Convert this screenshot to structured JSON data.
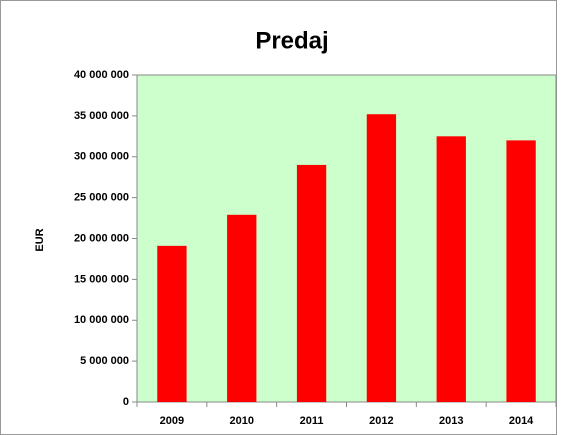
{
  "chart_data": {
    "type": "bar",
    "title": "Predaj",
    "y_label": "EUR",
    "categories": [
      "2009",
      "2010",
      "2011",
      "2012",
      "2013",
      "2014"
    ],
    "values": [
      19100000,
      22900000,
      29000000,
      35200000,
      32500000,
      32000000
    ],
    "color": "#ff0000",
    "plot_background": "#ccffcc",
    "ylim": [
      0,
      40000000
    ],
    "yticks": [
      0,
      {
        "value": 5000000,
        "label": "5 000 000"
      },
      {
        "value": 10000000,
        "label": "10 000 000"
      },
      {
        "value": 15000000,
        "label": "15 000 000"
      },
      {
        "value": 20000000,
        "label": "20 000 000"
      },
      {
        "value": 25000000,
        "label": "25 000 000"
      },
      {
        "value": 30000000,
        "label": "30 000 000"
      },
      {
        "value": 35000000,
        "label": "35 000 000"
      },
      {
        "value": 40000000,
        "label": "40 000 000"
      }
    ],
    "grid": false
  }
}
